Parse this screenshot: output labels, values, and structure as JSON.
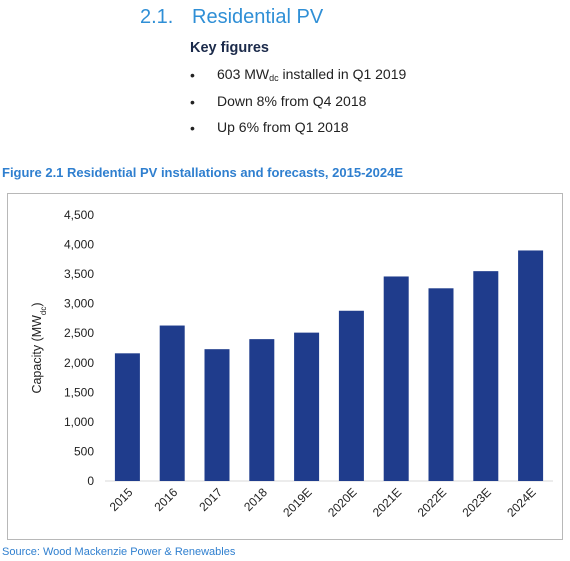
{
  "section": {
    "number": "2.1.",
    "title": "Residential PV"
  },
  "key_figures": {
    "title": "Key figures",
    "bullets": [
      {
        "before": "603 MW",
        "sub": "dc",
        "after": " installed in Q1 2019"
      },
      {
        "before": "Down 8% from Q4 2018",
        "sub": "",
        "after": ""
      },
      {
        "before": "Up 6% from Q1 2018",
        "sub": "",
        "after": ""
      }
    ]
  },
  "figure_caption": "Figure 2.1 Residential PV installations and forecasts, 2015-2024E",
  "source": "Source: Wood Mackenzie Power & Renewables",
  "colors": {
    "bar": "#1f3c8c",
    "heading": "#2f8fd6",
    "caption": "#2f7fcf"
  },
  "chart_data": {
    "type": "bar",
    "title": "",
    "xlabel": "",
    "ylabel": "Capacity (MW",
    "ylabel_sub": "dc",
    "ylabel_close": ")",
    "categories": [
      "2015",
      "2016",
      "2017",
      "2018",
      "2019E",
      "2020E",
      "2021E",
      "2022E",
      "2023E",
      "2024E"
    ],
    "values": [
      2160,
      2630,
      2230,
      2400,
      2510,
      2880,
      3460,
      3260,
      3550,
      3900
    ],
    "ylim": [
      0,
      4500
    ],
    "yticks": [
      0,
      500,
      1000,
      1500,
      2000,
      2500,
      3000,
      3500,
      4000,
      4500
    ],
    "ytick_labels": [
      "0",
      "500",
      "1,000",
      "1,500",
      "2,000",
      "2,500",
      "3,000",
      "3,500",
      "4,000",
      "4,500"
    ],
    "grid": false,
    "legend": "none"
  }
}
